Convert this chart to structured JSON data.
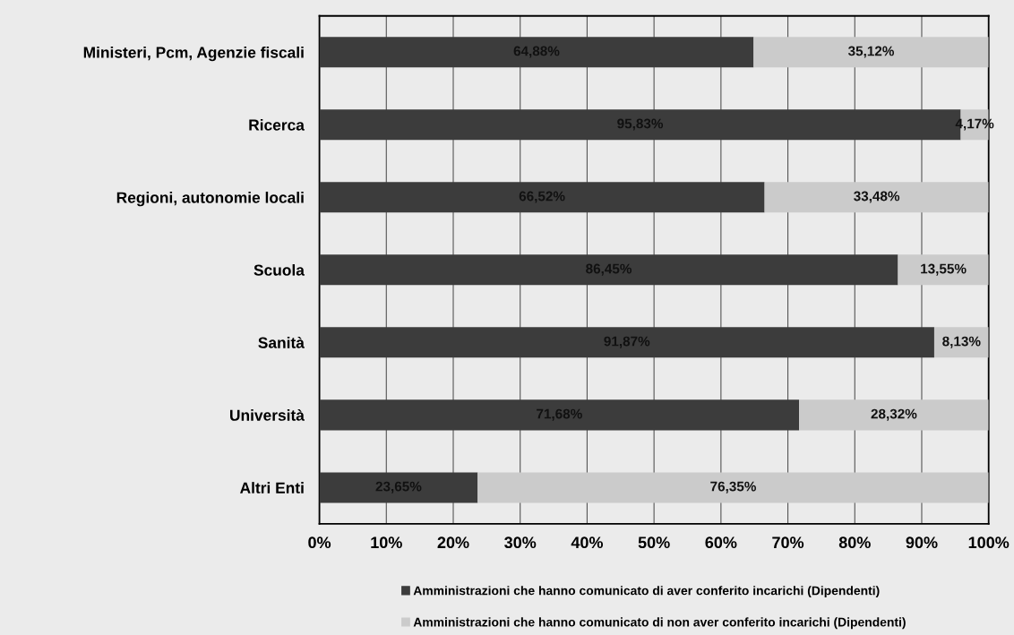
{
  "chart_data": {
    "type": "bar",
    "orientation": "horizontal",
    "stacked": true,
    "categories": [
      "Ministeri, Pcm, Agenzie fiscali",
      "Ricerca",
      "Regioni, autonomie locali",
      "Scuola",
      "Sanità",
      "Università",
      "Altri Enti"
    ],
    "series": [
      {
        "name": "Amministrazioni che hanno comunicato di aver conferito incarichi (Dipendenti)",
        "color": "#3c3c3c",
        "values": [
          64.88,
          95.83,
          66.52,
          86.45,
          91.87,
          71.68,
          23.65
        ],
        "value_labels": [
          "64,88%",
          "95,83%",
          "66,52%",
          "86,45%",
          "91,87%",
          "71,68%",
          "23,65%"
        ]
      },
      {
        "name": "Amministrazioni che hanno comunicato di non aver conferito incarichi (Dipendenti)",
        "color": "#cbcbcb",
        "values": [
          35.12,
          4.17,
          33.48,
          13.55,
          8.13,
          28.32,
          76.35
        ],
        "value_labels": [
          "35,12%",
          "4,17%",
          "33,48%",
          "13,55%",
          "8,13%",
          "28,32%",
          "76,35%"
        ]
      }
    ],
    "xlim": [
      0,
      100
    ],
    "xticks": [
      {
        "value": 0,
        "label": "0%"
      },
      {
        "value": 10,
        "label": "10%"
      },
      {
        "value": 20,
        "label": "20%"
      },
      {
        "value": 30,
        "label": "30%"
      },
      {
        "value": 40,
        "label": "40%"
      },
      {
        "value": 50,
        "label": "50%"
      },
      {
        "value": 60,
        "label": "60%"
      },
      {
        "value": 70,
        "label": "70%"
      },
      {
        "value": 80,
        "label": "80%"
      },
      {
        "value": 90,
        "label": "90%"
      },
      {
        "value": 100,
        "label": "100%"
      }
    ],
    "grid": "x",
    "legend": "bottom"
  }
}
